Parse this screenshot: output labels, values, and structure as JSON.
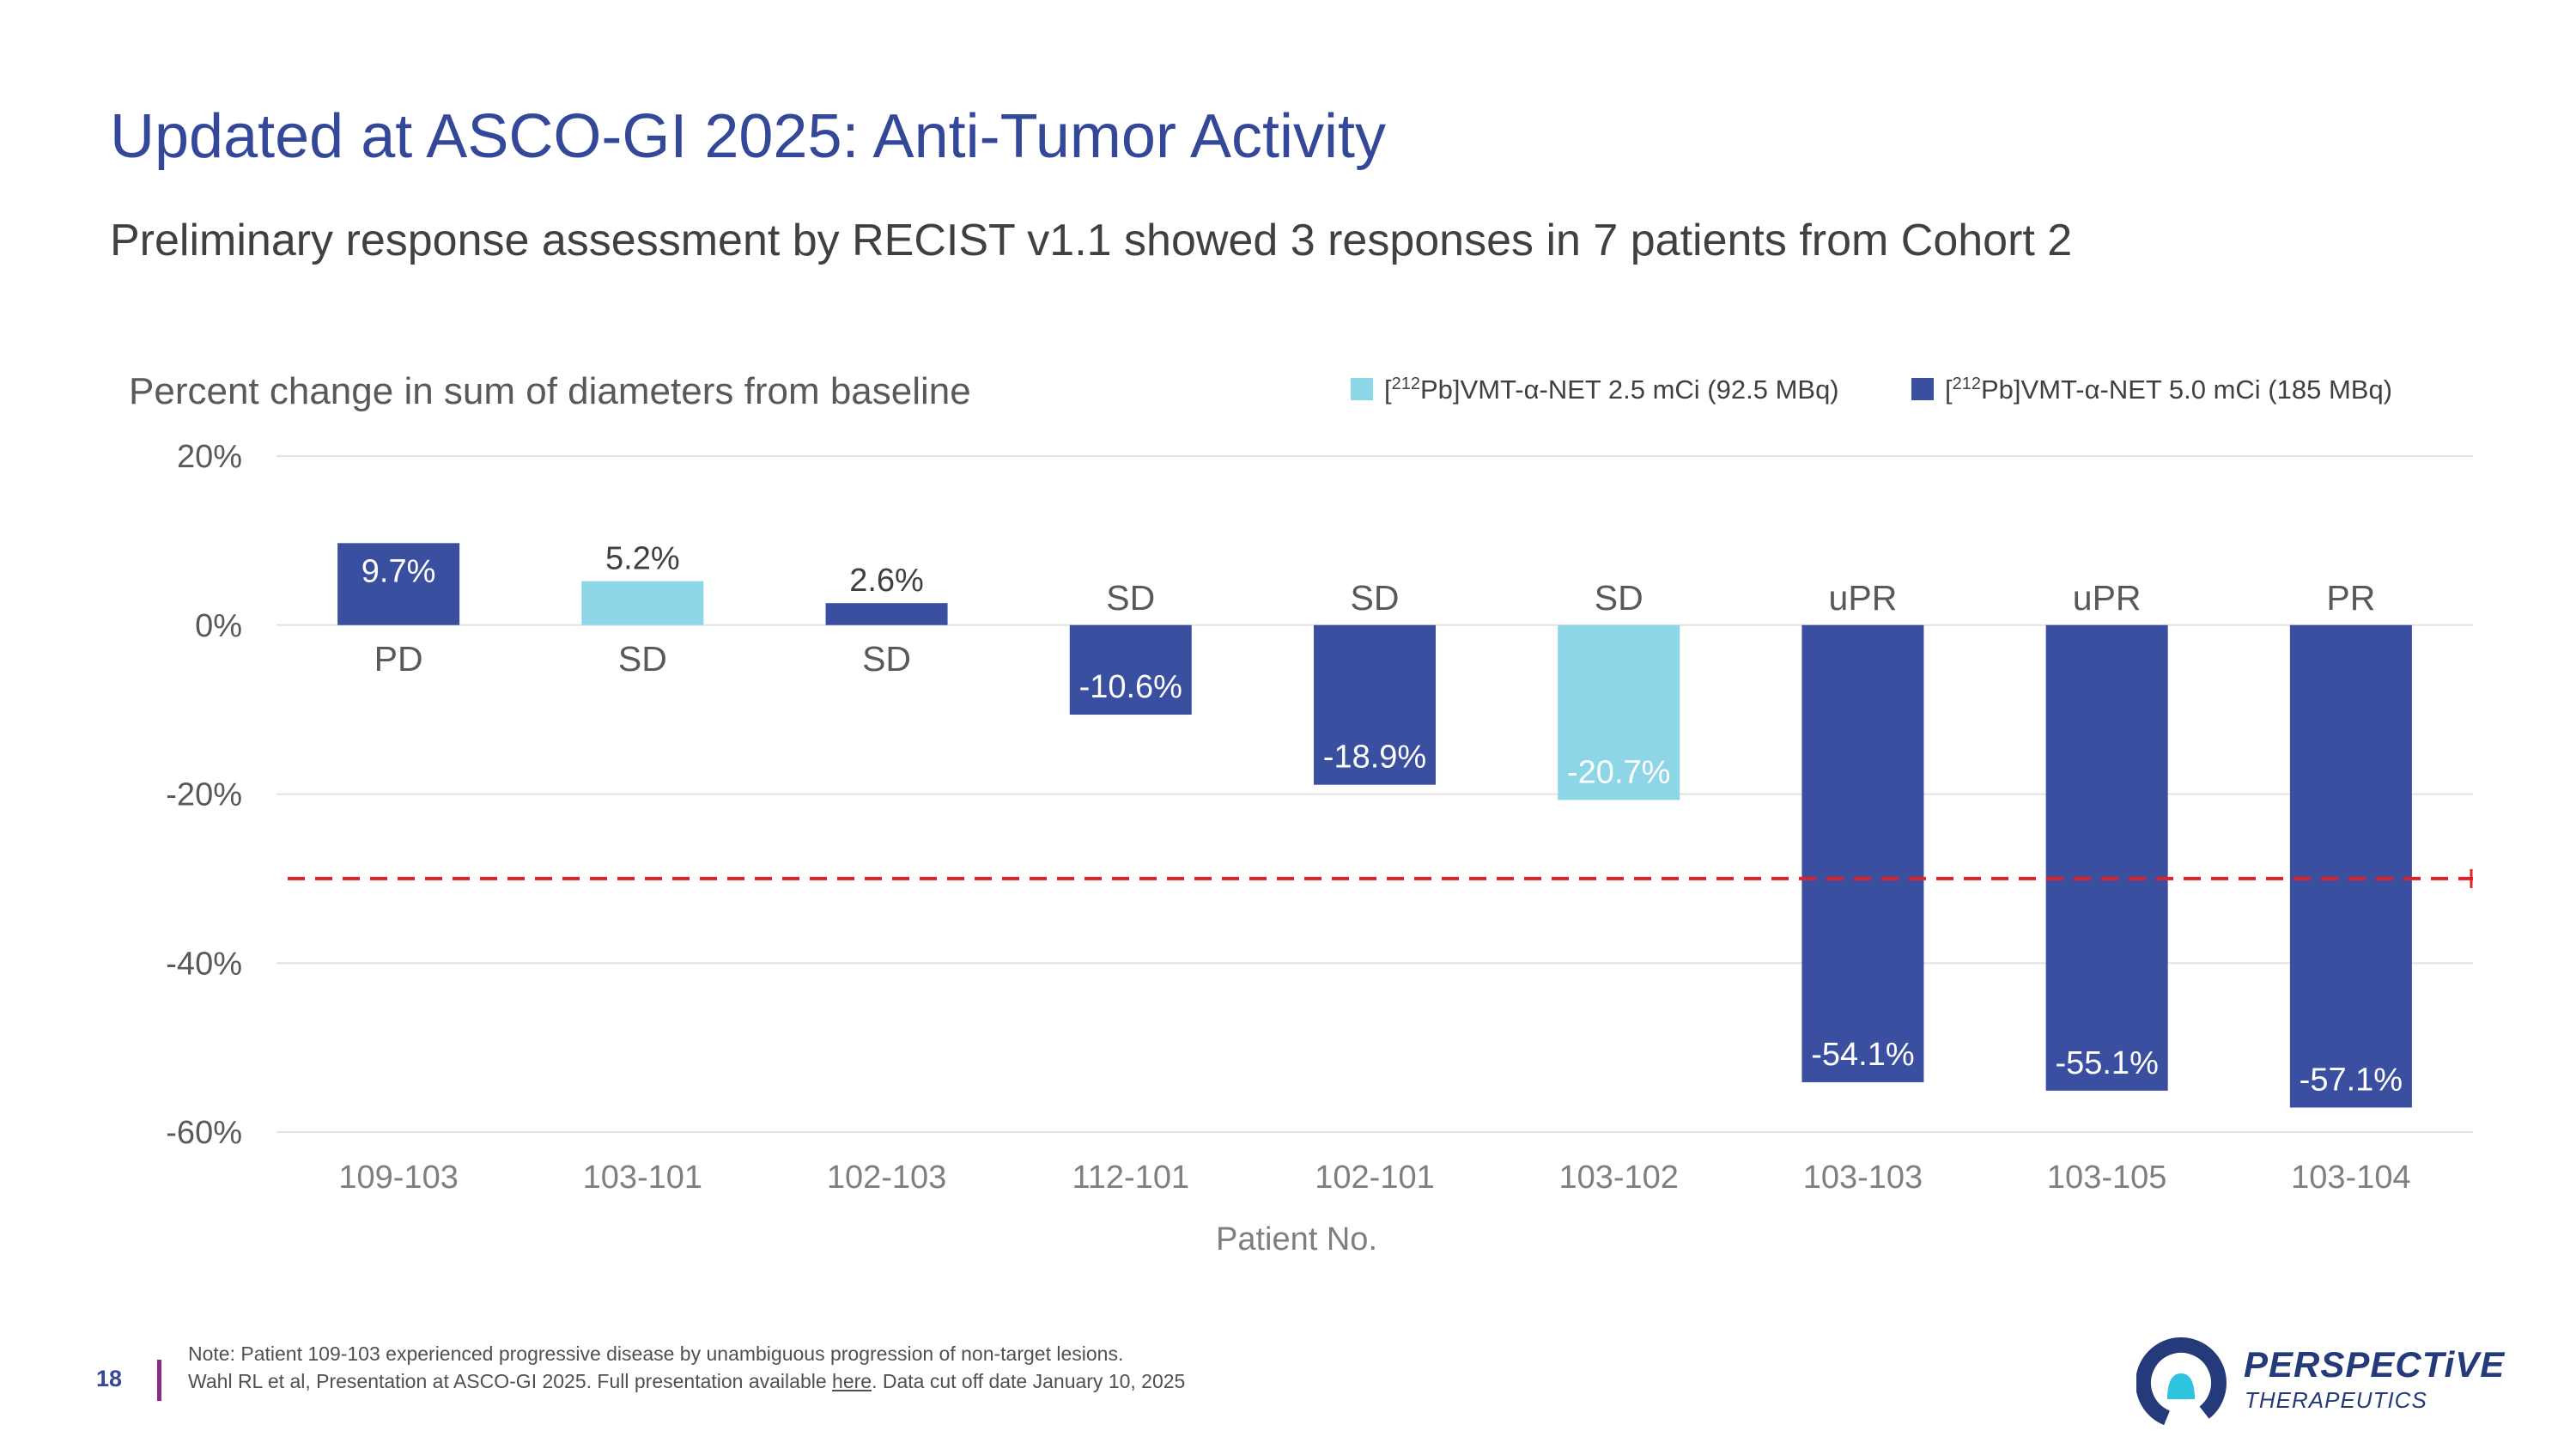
{
  "slide": {
    "title": "Updated at ASCO-GI 2025: Anti-Tumor Activity",
    "subtitle": "Preliminary response assessment by RECIST v1.1 showed 3 responses in 7 patients from Cohort 2",
    "page_number": "18",
    "footnote_line1": "Note: Patient 109-103 experienced progressive disease by unambiguous progression of non-target lesions.",
    "footnote_line2_pre": "Wahl RL et al, Presentation at ASCO-GI 2025. Full presentation available ",
    "footnote_link": "here",
    "footnote_line2_post": ". Data cut off date January 10, 2025",
    "logo_name": "PERSPECTiVE",
    "logo_sub": "THERAPEUTICS"
  },
  "colors": {
    "title": "#34489a",
    "light_series": "#8cd6e8",
    "dark_series": "#3a4fa0",
    "threshold": "#e0202a",
    "logo_dark": "#243a7a",
    "logo_accent": "#2ec4e0"
  },
  "chart_data": {
    "type": "bar",
    "title": "Percent change in sum of diameters from baseline",
    "xlabel": "Patient No.",
    "ylabel": "",
    "ylim": [
      -60,
      20
    ],
    "yticks": [
      20,
      0,
      -20,
      -40,
      -60
    ],
    "ytick_labels": [
      "20%",
      "0%",
      "-20%",
      "-40%",
      "-60%"
    ],
    "threshold": -30,
    "legend": [
      {
        "pre": "[",
        "sup": "212",
        "post": "Pb]VMT-α-NET 2.5 mCi (92.5 MBq)",
        "series": "light"
      },
      {
        "pre": "[",
        "sup": "212",
        "post": "Pb]VMT-α-NET 5.0 mCi (185 MBq)",
        "series": "dark"
      }
    ],
    "categories": [
      "109-103",
      "103-101",
      "102-103",
      "112-101",
      "102-101",
      "103-102",
      "103-103",
      "103-105",
      "103-104"
    ],
    "values": [
      9.7,
      5.2,
      2.6,
      -10.6,
      -18.9,
      -20.7,
      -54.1,
      -55.1,
      -57.1
    ],
    "value_labels": [
      "9.7%",
      "5.2%",
      "2.6%",
      "-10.6%",
      "-18.9%",
      "-20.7%",
      "-54.1%",
      "-55.1%",
      "-57.1%"
    ],
    "series_of_bar": [
      "dark",
      "light",
      "dark",
      "dark",
      "dark",
      "light",
      "dark",
      "dark",
      "dark"
    ],
    "responses": [
      "PD",
      "SD",
      "SD",
      "SD",
      "SD",
      "SD",
      "uPR",
      "uPR",
      "PR"
    ]
  }
}
